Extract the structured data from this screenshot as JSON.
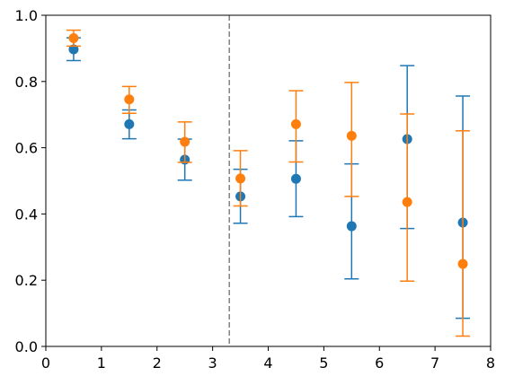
{
  "chart_data": {
    "type": "scatter",
    "title": "",
    "xlabel": "",
    "ylabel": "",
    "xlim": [
      0,
      8
    ],
    "ylim": [
      0,
      1
    ],
    "grid": false,
    "legend": "none",
    "x_ticks": [
      {
        "value": 0,
        "label": "0"
      },
      {
        "value": 1,
        "label": "1"
      },
      {
        "value": 2,
        "label": "2"
      },
      {
        "value": 3,
        "label": "3"
      },
      {
        "value": 4,
        "label": "4"
      },
      {
        "value": 5,
        "label": "5"
      },
      {
        "value": 6,
        "label": "6"
      },
      {
        "value": 7,
        "label": "7"
      },
      {
        "value": 8,
        "label": "8"
      }
    ],
    "y_ticks": [
      {
        "value": 0.0,
        "label": "0.0"
      },
      {
        "value": 0.2,
        "label": "0.2"
      },
      {
        "value": 0.4,
        "label": "0.4"
      },
      {
        "value": 0.6,
        "label": "0.6"
      },
      {
        "value": 0.8,
        "label": "0.8"
      },
      {
        "value": 1.0,
        "label": "1.0"
      }
    ],
    "vline": {
      "x": 3.3,
      "style": "dashed",
      "color": "#808080"
    },
    "series": [
      {
        "color": "#1f77b4",
        "points": [
          {
            "x": 0.5,
            "y": 0.897,
            "low": 0.863,
            "high": 0.932
          },
          {
            "x": 1.5,
            "y": 0.671,
            "low": 0.627,
            "high": 0.714
          },
          {
            "x": 2.5,
            "y": 0.564,
            "low": 0.502,
            "high": 0.626
          },
          {
            "x": 3.5,
            "y": 0.453,
            "low": 0.372,
            "high": 0.535
          },
          {
            "x": 4.5,
            "y": 0.506,
            "low": 0.392,
            "high": 0.621
          },
          {
            "x": 5.5,
            "y": 0.363,
            "low": 0.204,
            "high": 0.551
          },
          {
            "x": 6.5,
            "y": 0.626,
            "low": 0.356,
            "high": 0.848
          },
          {
            "x": 7.5,
            "y": 0.374,
            "low": 0.085,
            "high": 0.756
          }
        ]
      },
      {
        "color": "#ff7f0e",
        "points": [
          {
            "x": 0.5,
            "y": 0.931,
            "low": 0.907,
            "high": 0.955
          },
          {
            "x": 1.5,
            "y": 0.746,
            "low": 0.704,
            "high": 0.785
          },
          {
            "x": 2.5,
            "y": 0.618,
            "low": 0.556,
            "high": 0.678
          },
          {
            "x": 3.5,
            "y": 0.507,
            "low": 0.424,
            "high": 0.591
          },
          {
            "x": 4.5,
            "y": 0.671,
            "low": 0.557,
            "high": 0.772
          },
          {
            "x": 5.5,
            "y": 0.636,
            "low": 0.453,
            "high": 0.797
          },
          {
            "x": 6.5,
            "y": 0.436,
            "low": 0.197,
            "high": 0.702
          },
          {
            "x": 7.5,
            "y": 0.249,
            "low": 0.031,
            "high": 0.651
          }
        ]
      }
    ]
  }
}
